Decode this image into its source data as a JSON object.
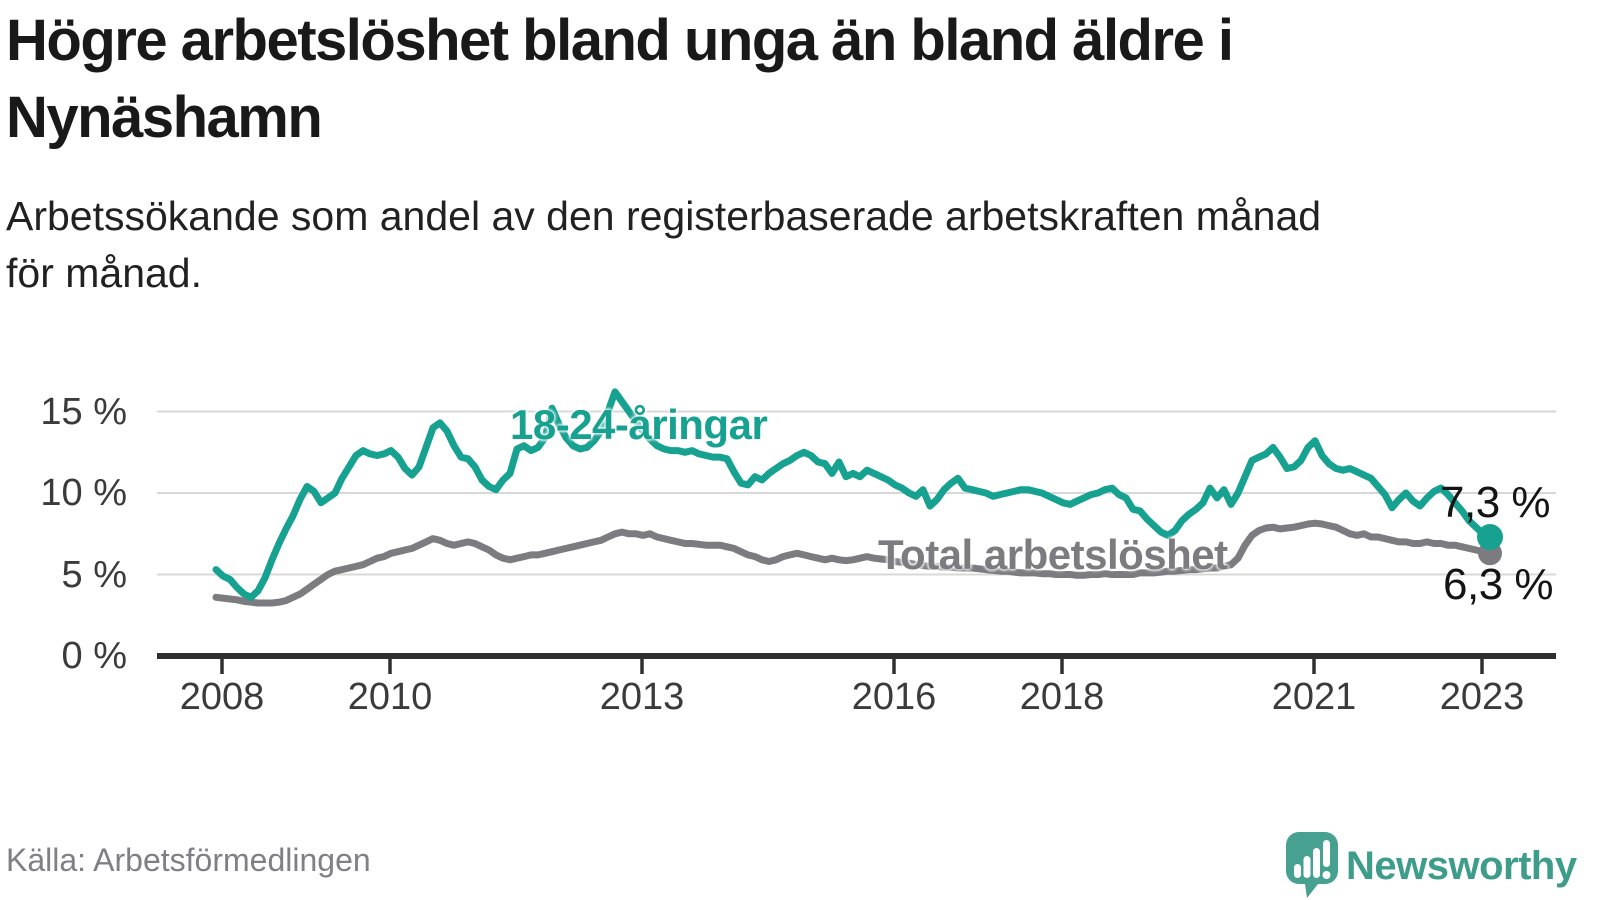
{
  "header": {
    "title": "Högre arbetslöshet bland unga än bland äldre i\nNynäshamn",
    "subtitle": "Arbetssökande som andel av den registerbaserade arbetskraften månad\nför månad."
  },
  "chart_data": {
    "type": "line",
    "title": "Högre arbetslöshet bland unga än bland äldre i Nynäshamn",
    "subtitle": "Arbetssökande som andel av den registerbaserade arbetskraften månad för månad.",
    "x_unit": "month",
    "x_start": "2008-01",
    "x_end": "2023-03",
    "x_tick_labels": [
      "2008",
      "2010",
      "2013",
      "2016",
      "2018",
      "2021",
      "2023"
    ],
    "y_tick_labels": [
      "15 %",
      "10 %",
      "5 %",
      "0 %"
    ],
    "y_tick_values": [
      15,
      10,
      5,
      0
    ],
    "ylim": [
      0,
      16.5
    ],
    "grid": true,
    "legend_position": "inline-annotations",
    "series": [
      {
        "name": "18-24-åringar",
        "color": "#16a191",
        "end_label": "7,3 %",
        "last_value": 7.3,
        "values": [
          5.3,
          4.9,
          4.7,
          4.2,
          3.8,
          3.6,
          4.0,
          4.8,
          5.9,
          6.9,
          7.8,
          8.6,
          9.6,
          10.4,
          10.1,
          9.4,
          9.7,
          10.0,
          10.9,
          11.6,
          12.3,
          12.6,
          12.4,
          12.3,
          12.4,
          12.6,
          12.2,
          11.5,
          11.1,
          11.6,
          12.8,
          14.0,
          14.3,
          13.8,
          12.9,
          12.2,
          12.1,
          11.6,
          10.8,
          10.4,
          10.2,
          10.8,
          11.2,
          12.7,
          12.9,
          12.6,
          12.8,
          13.4,
          15.2,
          14.2,
          13.4,
          12.9,
          12.7,
          12.8,
          13.2,
          13.8,
          15.0,
          16.2,
          15.6,
          15.0,
          14.4,
          13.8,
          13.3,
          12.9,
          12.7,
          12.6,
          12.6,
          12.5,
          12.6,
          12.4,
          12.3,
          12.2,
          12.2,
          12.1,
          11.3,
          10.6,
          10.5,
          11.0,
          10.8,
          11.2,
          11.5,
          11.8,
          12.0,
          12.3,
          12.5,
          12.3,
          11.9,
          11.8,
          11.2,
          11.9,
          11.0,
          11.2,
          11.0,
          11.4,
          11.2,
          11.0,
          10.8,
          10.5,
          10.3,
          10.0,
          9.8,
          10.2,
          9.2,
          9.6,
          10.2,
          10.6,
          10.9,
          10.3,
          10.2,
          10.1,
          10.0,
          9.8,
          9.9,
          10.0,
          10.1,
          10.2,
          10.2,
          10.1,
          10.0,
          9.8,
          9.6,
          9.4,
          9.3,
          9.5,
          9.7,
          9.9,
          10.0,
          10.2,
          10.3,
          9.9,
          9.7,
          9.0,
          8.9,
          8.4,
          8.0,
          7.6,
          7.4,
          7.7,
          8.3,
          8.7,
          9.0,
          9.4,
          10.3,
          9.7,
          10.2,
          9.3,
          10.0,
          11.0,
          12.0,
          12.2,
          12.4,
          12.8,
          12.2,
          11.5,
          11.6,
          12.0,
          12.8,
          13.2,
          12.3,
          11.8,
          11.5,
          11.4,
          11.5,
          11.3,
          11.1,
          10.9,
          10.4,
          9.9,
          9.1,
          9.6,
          10.0,
          9.5,
          9.2,
          9.7,
          10.1,
          10.3,
          9.9,
          9.4,
          8.9,
          8.3,
          7.9,
          7.5,
          7.3
        ]
      },
      {
        "name": "Total arbetslöshet",
        "color": "#7b7b80",
        "end_label": "6,3 %",
        "last_value": 6.3,
        "values": [
          3.6,
          3.55,
          3.5,
          3.45,
          3.35,
          3.3,
          3.25,
          3.25,
          3.25,
          3.3,
          3.4,
          3.6,
          3.8,
          4.1,
          4.4,
          4.7,
          5.0,
          5.2,
          5.3,
          5.4,
          5.5,
          5.6,
          5.8,
          6.0,
          6.1,
          6.3,
          6.4,
          6.5,
          6.6,
          6.8,
          7.0,
          7.2,
          7.1,
          6.9,
          6.8,
          6.9,
          7.0,
          6.9,
          6.7,
          6.5,
          6.2,
          6.0,
          5.9,
          6.0,
          6.1,
          6.2,
          6.2,
          6.3,
          6.4,
          6.5,
          6.6,
          6.7,
          6.8,
          6.9,
          7.0,
          7.1,
          7.3,
          7.5,
          7.6,
          7.5,
          7.5,
          7.4,
          7.5,
          7.3,
          7.2,
          7.1,
          7.0,
          6.9,
          6.9,
          6.85,
          6.8,
          6.8,
          6.8,
          6.7,
          6.6,
          6.4,
          6.2,
          6.1,
          5.9,
          5.8,
          5.9,
          6.1,
          6.2,
          6.3,
          6.2,
          6.1,
          6.0,
          5.9,
          6.0,
          5.9,
          5.85,
          5.9,
          6.0,
          6.1,
          6.0,
          5.95,
          5.9,
          5.8,
          5.75,
          5.7,
          5.6,
          5.55,
          5.5,
          5.5,
          5.45,
          5.45,
          5.4,
          5.4,
          5.4,
          5.35,
          5.3,
          5.25,
          5.2,
          5.2,
          5.15,
          5.1,
          5.1,
          5.1,
          5.05,
          5.05,
          5.0,
          5.0,
          5.0,
          4.95,
          4.95,
          5.0,
          5.0,
          5.05,
          5.0,
          5.0,
          5.0,
          5.0,
          5.1,
          5.1,
          5.1,
          5.15,
          5.2,
          5.2,
          5.25,
          5.3,
          5.3,
          5.35,
          5.4,
          5.4,
          5.5,
          5.6,
          6.0,
          6.8,
          7.4,
          7.7,
          7.85,
          7.9,
          7.8,
          7.85,
          7.9,
          8.0,
          8.1,
          8.15,
          8.1,
          8.0,
          7.9,
          7.7,
          7.5,
          7.4,
          7.5,
          7.3,
          7.3,
          7.2,
          7.1,
          7.0,
          7.0,
          6.9,
          6.9,
          7.0,
          6.9,
          6.9,
          6.8,
          6.8,
          6.7,
          6.6,
          6.5,
          6.4,
          6.3
        ]
      }
    ]
  },
  "footer": {
    "source": "Källa: Arbetsförmedlingen",
    "brand": "Newsworthy",
    "logo_icon": "speech-bubble-bar-chart-icon"
  },
  "colors": {
    "accent_teal": "#16a191",
    "series_gray": "#7b7b80",
    "logo_teal": "#47a191",
    "grid": "#d8d8d8",
    "axis_line": "#2f2f2f",
    "axis_text": "#3b3b3b",
    "title_text": "#191919",
    "source_text": "#7f7f85"
  }
}
